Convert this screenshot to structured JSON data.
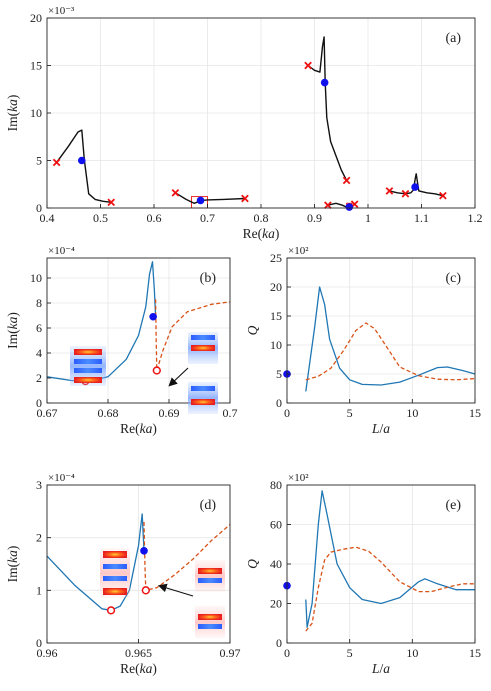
{
  "colors": {
    "black_curve": "#111111",
    "blue": "#1f77b4",
    "blue_marker": "#1010ee",
    "orange": "#d95319",
    "red_marker": "#ee1111",
    "grid": "#e6e6e6"
  },
  "chart_data": [
    {
      "id": "a",
      "type": "line",
      "panel_label": "(a)",
      "xlabel": "Re(ka)",
      "ylabel": "Im(ka)",
      "multiplier": "×10⁻³",
      "xlim": [
        0.4,
        1.2
      ],
      "ylim": [
        0,
        20
      ],
      "xticks": [
        0.4,
        0.5,
        0.6,
        0.7,
        0.8,
        0.9,
        1,
        1.1,
        1.2
      ],
      "xticklabels": [
        "0.4",
        "0.5",
        "0.6",
        "0.7",
        "0.8",
        "0.9",
        "1",
        "1.1",
        "1.2"
      ],
      "yticks": [
        0,
        5,
        10,
        15,
        20
      ],
      "yticklabels": [
        "0",
        "5",
        "10",
        "15",
        "20"
      ],
      "grid": true,
      "series": [
        {
          "style": "black",
          "x": [
            0.418,
            0.44,
            0.458,
            0.465,
            0.47,
            0.478,
            0.49,
            0.505,
            0.52
          ],
          "y": [
            4.8,
            6.5,
            8.0,
            8.2,
            5.0,
            1.5,
            0.9,
            0.7,
            0.6
          ]
        },
        {
          "style": "black",
          "x": [
            0.64,
            0.66,
            0.675,
            0.685,
            0.69,
            0.7,
            0.73,
            0.77
          ],
          "y": [
            1.6,
            0.9,
            0.5,
            0.7,
            0.8,
            0.85,
            0.9,
            1.0
          ]
        },
        {
          "style": "black",
          "x": [
            0.888,
            0.9,
            0.91,
            0.915,
            0.918,
            0.92,
            0.923,
            0.93,
            0.95,
            0.96
          ],
          "y": [
            15.0,
            14.5,
            14.3,
            17.0,
            18.0,
            13.2,
            9.5,
            7.0,
            4.0,
            2.9
          ]
        },
        {
          "style": "black",
          "x": [
            0.925,
            0.94,
            0.952,
            0.96,
            0.965,
            0.97,
            0.975
          ],
          "y": [
            0.3,
            0.5,
            0.3,
            0.1,
            0.1,
            0.2,
            0.4
          ]
        },
        {
          "style": "black",
          "x": [
            1.04,
            1.055,
            1.07,
            1.08,
            1.085,
            1.088,
            1.09,
            1.095,
            1.11,
            1.125,
            1.14
          ],
          "y": [
            1.8,
            1.6,
            1.5,
            1.6,
            1.9,
            3.0,
            3.6,
            1.8,
            1.6,
            1.5,
            1.3
          ]
        }
      ],
      "markers_blue_dot": [
        {
          "x": 0.465,
          "y": 5.0
        },
        {
          "x": 0.687,
          "y": 0.8
        },
        {
          "x": 0.919,
          "y": 13.2
        },
        {
          "x": 0.965,
          "y": 0.1
        },
        {
          "x": 1.088,
          "y": 2.2
        }
      ],
      "markers_red_x": [
        {
          "x": 0.418,
          "y": 4.8
        },
        {
          "x": 0.52,
          "y": 0.6
        },
        {
          "x": 0.64,
          "y": 1.6
        },
        {
          "x": 0.77,
          "y": 1.0
        },
        {
          "x": 0.888,
          "y": 15.0
        },
        {
          "x": 0.96,
          "y": 2.9
        },
        {
          "x": 0.925,
          "y": 0.3
        },
        {
          "x": 0.975,
          "y": 0.4
        },
        {
          "x": 1.04,
          "y": 1.8
        },
        {
          "x": 1.07,
          "y": 1.5
        },
        {
          "x": 1.14,
          "y": 1.3
        }
      ],
      "highlight_boxes": [
        {
          "x0": 0.67,
          "x1": 0.7,
          "y0": 0,
          "y1": 1.2
        },
        {
          "x0": 0.96,
          "x1": 0.97,
          "y0": 0,
          "y1": 0.5
        }
      ]
    },
    {
      "id": "b",
      "type": "line",
      "panel_label": "(b)",
      "xlabel": "Re(ka)",
      "ylabel": "Im(ka)",
      "multiplier": "×10⁻⁴",
      "xlim": [
        0.67,
        0.7
      ],
      "ylim": [
        0,
        11.6
      ],
      "xticks": [
        0.67,
        0.68,
        0.69,
        0.7
      ],
      "xticklabels": [
        "0.67",
        "0.68",
        "0.69",
        "0.7"
      ],
      "yticks": [
        0,
        2,
        4,
        6,
        8,
        10
      ],
      "yticklabels": [
        "0",
        "2",
        "4",
        "6",
        "8",
        "10"
      ],
      "grid": true,
      "series": [
        {
          "style": "blue",
          "x": [
            0.67,
            0.674,
            0.677,
            0.68,
            0.683,
            0.685,
            0.6862,
            0.6868,
            0.6873,
            0.6876,
            0.6878
          ],
          "y": [
            2.1,
            1.8,
            1.75,
            2.1,
            3.5,
            5.4,
            7.7,
            10.3,
            11.3,
            9.0,
            6.9
          ]
        },
        {
          "style": "orange",
          "x": [
            0.6878,
            0.6879,
            0.688,
            0.689,
            0.6905,
            0.693,
            0.697,
            0.7
          ],
          "y": [
            8.3,
            5.0,
            2.6,
            4.2,
            6.1,
            7.3,
            7.9,
            8.1
          ]
        }
      ],
      "markers_blue_dot": [
        {
          "x": 0.6874,
          "y": 6.9
        }
      ],
      "markers_red_circle": [
        {
          "x": 0.6763,
          "y": 1.75
        },
        {
          "x": 0.688,
          "y": 2.6
        }
      ]
    },
    {
      "id": "c",
      "type": "line",
      "panel_label": "(c)",
      "xlabel": "L/a",
      "ylabel": "Q",
      "multiplier": "×10²",
      "xlim": [
        0,
        15
      ],
      "ylim": [
        0,
        25
      ],
      "xticks": [
        0,
        5,
        10,
        15
      ],
      "xticklabels": [
        "0",
        "5",
        "10",
        "15"
      ],
      "yticks": [
        0,
        5,
        10,
        15,
        20,
        25
      ],
      "yticklabels": [
        "0",
        "5",
        "10",
        "15",
        "20",
        "25"
      ],
      "grid": true,
      "series": [
        {
          "style": "blue",
          "x": [
            1.5,
            2.2,
            2.6,
            3.0,
            3.4,
            4.2,
            5.0,
            6.0,
            7.5,
            9.0,
            10.5,
            12.0,
            12.8,
            14.0,
            15.0
          ],
          "y": [
            2.0,
            13.0,
            20.0,
            17.0,
            11.0,
            6.0,
            4.0,
            3.2,
            3.1,
            3.6,
            4.8,
            6.1,
            6.2,
            5.6,
            5.0
          ]
        },
        {
          "style": "orange",
          "x": [
            1.5,
            2.5,
            3.5,
            4.5,
            5.5,
            6.3,
            7.0,
            8.0,
            9.0,
            10.5,
            12.0,
            13.5,
            15.0
          ],
          "y": [
            4.0,
            4.6,
            6.0,
            9.0,
            12.5,
            13.8,
            12.8,
            9.5,
            6.2,
            4.7,
            4.1,
            4.0,
            4.2
          ]
        }
      ],
      "markers_blue_dot": [
        {
          "x": 0.0,
          "y": 5.0
        }
      ]
    },
    {
      "id": "d",
      "type": "line",
      "panel_label": "(d)",
      "xlabel": "Re(ka)",
      "ylabel": "Im(ka)",
      "multiplier": "×10⁻⁴",
      "xlim": [
        0.96,
        0.97
      ],
      "ylim": [
        0,
        3
      ],
      "xticks": [
        0.96,
        0.965,
        0.97
      ],
      "xticklabels": [
        "0.96",
        "0.965",
        "0.97"
      ],
      "yticks": [
        0,
        1,
        2,
        3
      ],
      "yticklabels": [
        "0",
        "1",
        "2",
        "3"
      ],
      "grid": true,
      "series": [
        {
          "style": "blue",
          "x": [
            0.96,
            0.9615,
            0.963,
            0.9635,
            0.964,
            0.9645,
            0.965,
            0.9652,
            0.9653
          ],
          "y": [
            1.65,
            1.1,
            0.65,
            0.62,
            0.7,
            1.0,
            1.85,
            2.45,
            1.75
          ]
        },
        {
          "style": "orange",
          "x": [
            0.9653,
            0.96535,
            0.9654,
            0.966,
            0.967,
            0.968,
            0.969,
            0.97
          ],
          "y": [
            2.3,
            1.5,
            1.0,
            1.05,
            1.3,
            1.6,
            1.95,
            2.25
          ]
        }
      ],
      "markers_blue_dot": [
        {
          "x": 0.9653,
          "y": 1.75
        }
      ],
      "markers_red_circle": [
        {
          "x": 0.9635,
          "y": 0.62
        },
        {
          "x": 0.9654,
          "y": 1.0
        }
      ]
    },
    {
      "id": "e",
      "type": "line",
      "panel_label": "(e)",
      "xlabel": "L/a",
      "ylabel": "Q",
      "multiplier": "×10²",
      "xlim": [
        0,
        15
      ],
      "ylim": [
        0,
        80
      ],
      "xticks": [
        0,
        5,
        10,
        15
      ],
      "xticklabels": [
        "0",
        "5",
        "10",
        "15"
      ],
      "yticks": [
        0,
        20,
        40,
        60,
        80
      ],
      "yticklabels": [
        "0",
        "20",
        "40",
        "60",
        "80"
      ],
      "grid": true,
      "series": [
        {
          "style": "blue",
          "x": [
            1.5,
            1.6,
            2.0,
            2.5,
            2.8,
            3.2,
            4.0,
            5.0,
            6.0,
            7.5,
            9.0,
            10.5,
            11.0,
            12.0,
            13.5,
            15.0
          ],
          "y": [
            22.0,
            8.0,
            20.0,
            60.0,
            77.0,
            65.0,
            40.0,
            28.0,
            22.0,
            20.0,
            23.0,
            31.0,
            32.5,
            30.0,
            27.0,
            27.0
          ]
        },
        {
          "style": "orange",
          "x": [
            1.5,
            2.0,
            2.5,
            3.0,
            3.5,
            4.5,
            5.5,
            6.5,
            7.5,
            9.0,
            10.5,
            11.5,
            13.0,
            14.0,
            15.0
          ],
          "y": [
            6.0,
            10.0,
            28.0,
            42.0,
            46.0,
            47.5,
            48.5,
            46.5,
            41.0,
            31.0,
            26.0,
            26.0,
            28.5,
            30.0,
            30.0
          ]
        }
      ],
      "markers_blue_dot": [
        {
          "x": 0.0,
          "y": 29.0
        }
      ]
    }
  ]
}
